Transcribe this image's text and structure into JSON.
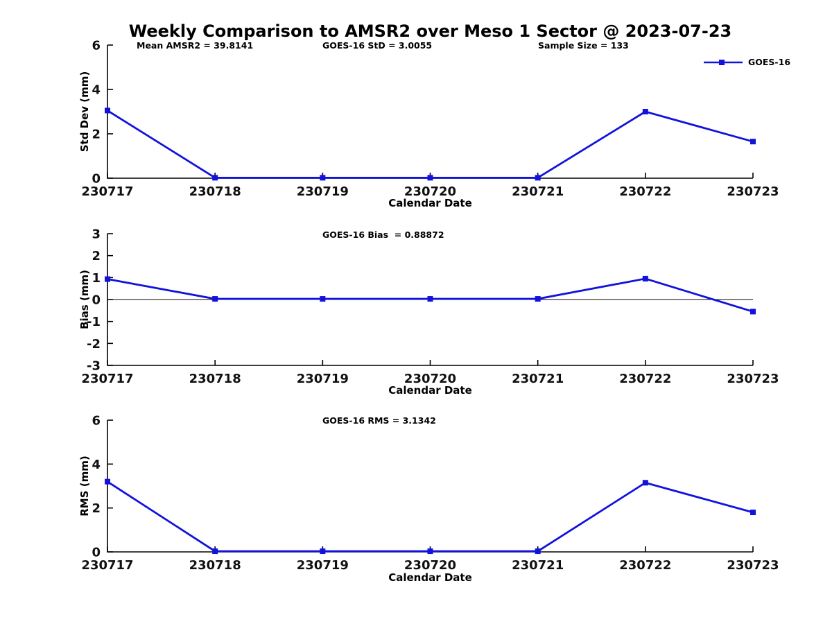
{
  "page": {
    "title": "Weekly Comparison to AMSR2 over Meso 1 Sector @ 2023-07-23"
  },
  "legend": {
    "label": "GOES-16"
  },
  "colors": {
    "series": "#1212DD",
    "axis": "#000000",
    "zero_line": "#000000"
  },
  "chart_data": [
    {
      "type": "line",
      "marker": "square",
      "annotations": [
        "Mean AMSR2 = 39.8141",
        "GOES-16 StD = 3.0055",
        "Sample Size = 133"
      ],
      "xlabel": "Calendar Date",
      "ylabel": "Std Dev (mm)",
      "x_tick_labels": [
        "230717",
        "230718",
        "230719",
        "230720",
        "230721",
        "230722",
        "230723"
      ],
      "ylim": [
        0,
        6
      ],
      "yticks": [
        0,
        2,
        4,
        6
      ],
      "grid": false,
      "zero_line": false,
      "legend_position": "top-right",
      "series": [
        {
          "name": "GOES-16",
          "values": [
            3.05,
            0.02,
            0.02,
            0.02,
            0.02,
            3.0,
            1.65
          ]
        }
      ]
    },
    {
      "type": "line",
      "marker": "square",
      "annotations": [
        "GOES-16 Bias  = 0.88872"
      ],
      "xlabel": "Calendar Date",
      "ylabel": "Bias (mm)",
      "x_tick_labels": [
        "230717",
        "230718",
        "230719",
        "230720",
        "230721",
        "230722",
        "230723"
      ],
      "ylim": [
        -3,
        3
      ],
      "yticks": [
        -3,
        -2,
        -1,
        0,
        1,
        2,
        3
      ],
      "grid": false,
      "zero_line": true,
      "series": [
        {
          "name": "GOES-16",
          "values": [
            0.93,
            0.03,
            0.03,
            0.03,
            0.03,
            0.95,
            -0.55
          ]
        }
      ]
    },
    {
      "type": "line",
      "marker": "square",
      "annotations": [
        "GOES-16 RMS = 3.1342"
      ],
      "xlabel": "Calendar Date",
      "ylabel": "RMS (mm)",
      "x_tick_labels": [
        "230717",
        "230718",
        "230719",
        "230720",
        "230721",
        "230722",
        "230723"
      ],
      "ylim": [
        0,
        6
      ],
      "yticks": [
        0,
        2,
        4,
        6
      ],
      "grid": false,
      "zero_line": false,
      "series": [
        {
          "name": "GOES-16",
          "values": [
            3.2,
            0.03,
            0.03,
            0.03,
            0.03,
            3.15,
            1.8
          ]
        }
      ]
    }
  ]
}
